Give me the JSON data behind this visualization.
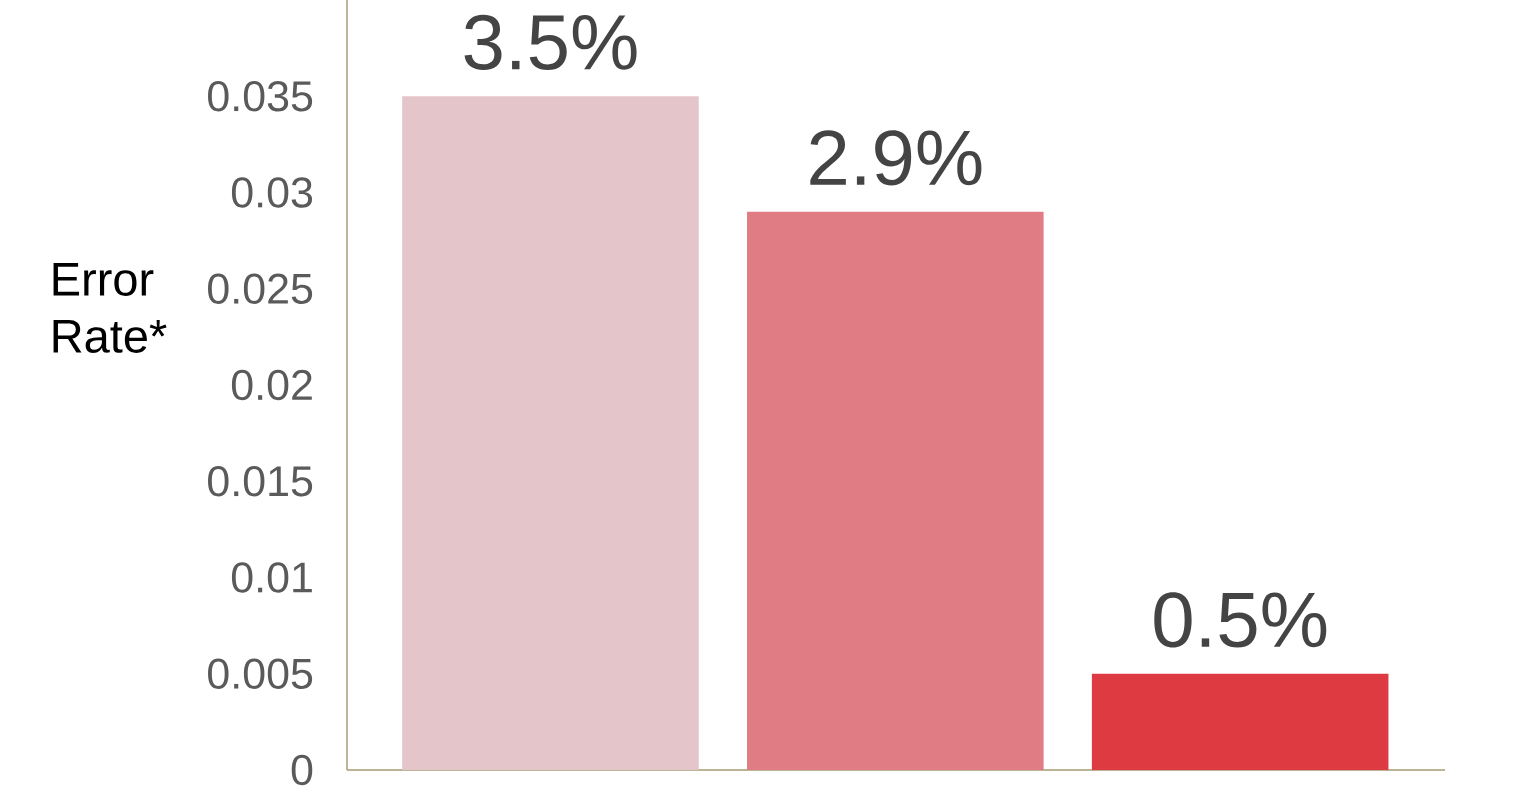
{
  "chart_data": {
    "type": "bar",
    "ylabel": "Error Rate*",
    "categories": [
      null,
      null,
      null
    ],
    "values": [
      0.035,
      0.029,
      0.005
    ],
    "colors": [
      "#e4c5ca",
      "#df7c84",
      "#de3a42"
    ],
    "value_labels": [
      "3.5%",
      "2.9%",
      "0.5%"
    ],
    "ylim": [
      0,
      0.04
    ],
    "yticks": [
      0,
      0.005,
      0.01,
      0.015,
      0.02,
      0.025,
      0.03,
      0.035
    ]
  }
}
